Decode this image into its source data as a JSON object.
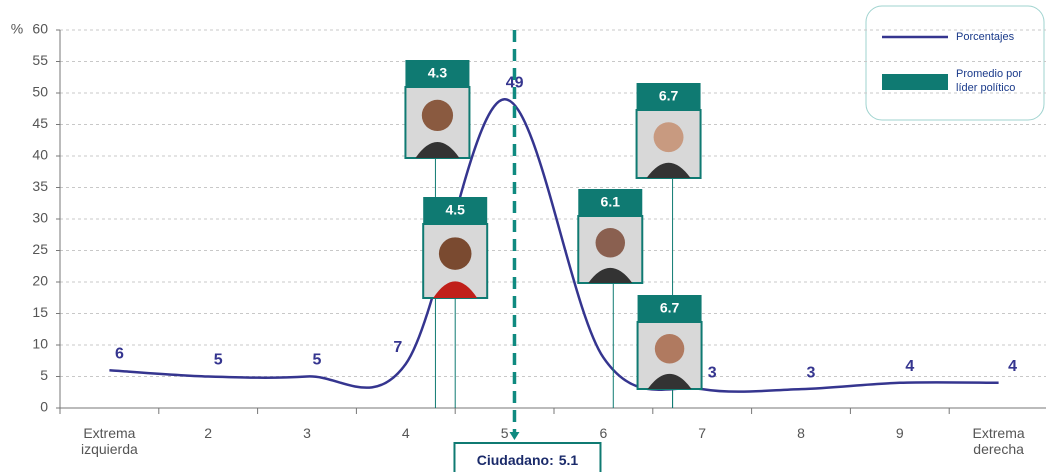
{
  "chart_data": {
    "type": "line",
    "y_axis_label": "%",
    "categories": [
      "Extrema izquierda",
      "2",
      "3",
      "4",
      "5",
      "6",
      "7",
      "8",
      "9",
      "Extrema derecha"
    ],
    "series": [
      {
        "name": "Porcentajes",
        "color": "#35358f",
        "values": [
          6,
          5,
          5,
          7,
          49,
          8,
          3,
          3,
          4,
          4
        ]
      }
    ],
    "leaders": {
      "name": "Promedio por líder político",
      "color": "#0f7a72",
      "values": [
        4.3,
        4.5,
        6.7,
        6.1,
        6.7
      ]
    },
    "citizen": {
      "label": "Ciudadano:",
      "value": 5.1
    },
    "ylim": [
      0,
      60
    ],
    "yticks": [
      0,
      5,
      10,
      15,
      20,
      25,
      30,
      35,
      40,
      45,
      50,
      55,
      60
    ],
    "grid": true
  }
}
